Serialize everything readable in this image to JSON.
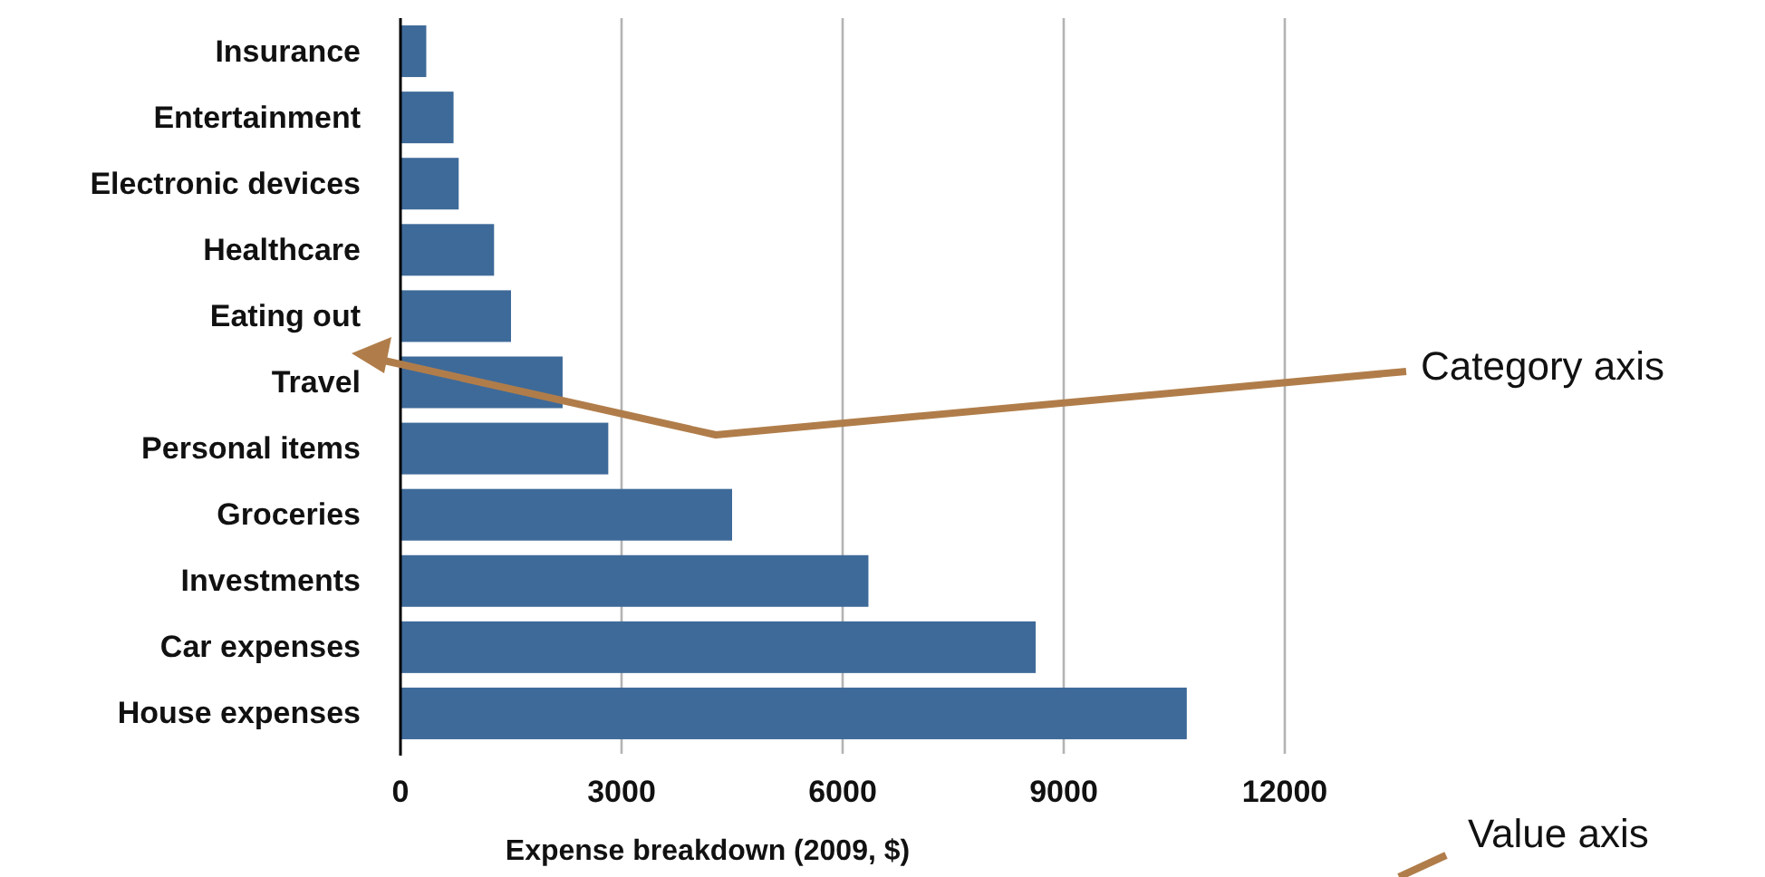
{
  "chart_data": {
    "type": "bar",
    "orientation": "horizontal",
    "xlabel": "Expense breakdown (2009, $)",
    "categories": [
      "Insurance",
      "Entertainment",
      "Electronic devices",
      "Healthcare",
      "Eating out",
      "Travel",
      "Personal items",
      "Groceries",
      "Investments",
      "Car expenses",
      "House expenses"
    ],
    "values": [
      350,
      720,
      790,
      1270,
      1500,
      2200,
      2820,
      4500,
      6350,
      8620,
      10670
    ],
    "color": "#3e6a99",
    "xlim": [
      0,
      12000
    ],
    "xticks": [
      0,
      3000,
      6000,
      9000,
      12000
    ],
    "grid": "x",
    "annotations": [
      "Category axis",
      "Value axis"
    ]
  }
}
